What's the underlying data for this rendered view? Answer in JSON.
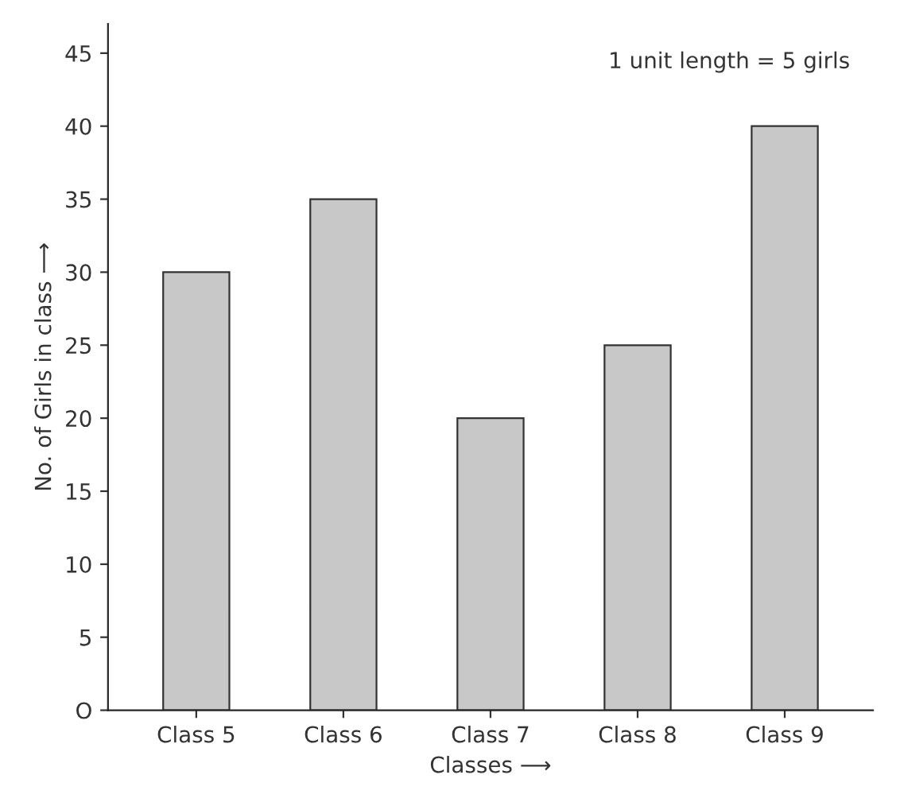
{
  "chart_data": {
    "type": "bar",
    "categories": [
      "Class 5",
      "Class 6",
      "Class 7",
      "Class 8",
      "Class 9"
    ],
    "values": [
      30,
      35,
      20,
      25,
      40
    ],
    "color": "#c8c8c8",
    "xlabel": "Classes ⟶",
    "ylabel": "No. of Girls in class ⟶",
    "ylim": [
      0,
      47
    ],
    "yticks": [
      {
        "value": 0,
        "label": "O"
      },
      5,
      10,
      15,
      20,
      25,
      30,
      35,
      40,
      45
    ],
    "annotations": [
      "1 unit length = 5 girls"
    ],
    "grid": false
  }
}
